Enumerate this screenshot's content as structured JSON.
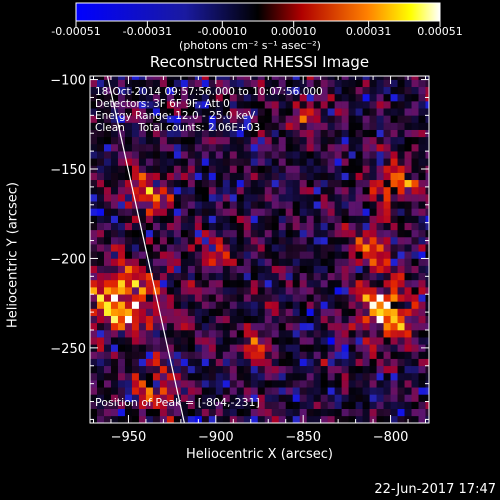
{
  "colorbar": {
    "tick_labels": [
      "-0.00051",
      "-0.00031",
      "-0.00010",
      "0.00010",
      "0.00031",
      "0.00051"
    ],
    "ticks": [
      -0.00051,
      -0.00031,
      -0.0001,
      0.0001,
      0.00031,
      0.00051
    ],
    "range": [
      -0.00051,
      0.00051
    ],
    "units_label": "(photons cm⁻² s⁻¹ asec⁻²)",
    "colors": [
      "#0000ff",
      "#000000",
      "#ff0000",
      "#ffff00",
      "#ffffff"
    ]
  },
  "chart_data": {
    "type": "heatmap",
    "title": "Reconstructed RHESSI Image",
    "xlabel": "Heliocentric X (arcsec)",
    "ylabel": "Heliocentric Y (arcsec)",
    "xlim": [
      -972,
      -778
    ],
    "ylim": [
      -292,
      -98
    ],
    "x_ticks": [
      -950,
      -900,
      -850,
      -800
    ],
    "x_tick_labels": [
      "−950",
      "−900",
      "−850",
      "−800"
    ],
    "y_ticks": [
      -250,
      -200,
      -150,
      -100
    ],
    "y_tick_labels": [
      "−250",
      "−200",
      "−150",
      "−100"
    ],
    "grid": false,
    "annotations": [
      "18-Oct-2014 09:57:56.000 to 10:07:56.000",
      "Detectors: 3F 6F 9F, Att 0",
      "Energy Range: 12.0 - 25.0 keV",
      "Clean    Total counts: 2.06E+03"
    ],
    "peak_label": "Position of Peak = [-804,-231]",
    "peak_position": [
      -804,
      -231
    ],
    "limb_line": [
      [
        -962,
        -98
      ],
      [
        -918,
        -292
      ]
    ],
    "hot_spots": [
      {
        "x": -955,
        "y": -225,
        "sigma": 14,
        "amp": 1.0
      },
      {
        "x": -940,
        "y": -165,
        "sigma": 10,
        "amp": 0.7
      },
      {
        "x": -935,
        "y": -275,
        "sigma": 10,
        "amp": 0.6
      },
      {
        "x": -804,
        "y": -231,
        "sigma": 12,
        "amp": 1.0
      },
      {
        "x": -800,
        "y": -160,
        "sigma": 10,
        "amp": 0.75
      },
      {
        "x": -815,
        "y": -195,
        "sigma": 9,
        "amp": 0.7
      },
      {
        "x": -905,
        "y": -200,
        "sigma": 8,
        "amp": 0.45
      },
      {
        "x": -880,
        "y": -250,
        "sigma": 8,
        "amp": 0.5
      },
      {
        "x": -850,
        "y": -120,
        "sigma": 8,
        "amp": 0.45
      }
    ]
  },
  "timestamp": "22-Jun-2017 17:47"
}
